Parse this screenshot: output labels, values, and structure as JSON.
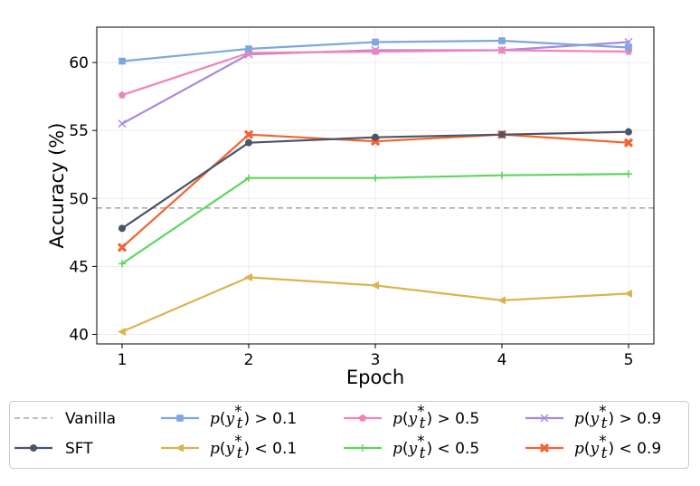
{
  "chart_data": {
    "type": "line",
    "title": "",
    "xlabel": "Epoch",
    "ylabel": "Accuracy (%)",
    "x": [
      1,
      2,
      3,
      4,
      5
    ],
    "xticks": [
      "1",
      "2",
      "3",
      "4",
      "5"
    ],
    "yticks": [
      "40",
      "45",
      "50",
      "55",
      "60"
    ],
    "xlim": [
      0.8,
      5.2
    ],
    "ylim": [
      39.3,
      62.6
    ],
    "grid": true,
    "legend_position": "bottom",
    "baseline": {
      "name": "Vanilla",
      "value": 49.3,
      "color": "#aaaaaa",
      "style": "dashed"
    },
    "series": [
      {
        "name": "SFT",
        "color": "#4a5568",
        "marker": "circle",
        "values": [
          47.8,
          54.1,
          54.5,
          54.7,
          54.9
        ]
      },
      {
        "name": "p(y*t) < 0.1",
        "rel": "<",
        "thr": "0.1",
        "color": "#d9b450",
        "marker": "triangle-left",
        "values": [
          40.2,
          44.2,
          43.6,
          42.5,
          43.0
        ]
      },
      {
        "name": "p(y*t) > 0.1",
        "rel": ">",
        "thr": "0.1",
        "color": "#7ea6e0",
        "marker": "square",
        "values": [
          60.1,
          61.0,
          61.5,
          61.6,
          61.1
        ]
      },
      {
        "name": "p(y*t) < 0.5",
        "rel": "<",
        "thr": "0.5",
        "color": "#5cd65c",
        "marker": "plus",
        "values": [
          45.2,
          51.5,
          51.5,
          51.7,
          51.8
        ]
      },
      {
        "name": "p(y*t) > 0.5",
        "rel": ">",
        "thr": "0.5",
        "color": "#f283b8",
        "marker": "pentagon",
        "values": [
          57.6,
          60.7,
          60.8,
          60.9,
          60.8
        ]
      },
      {
        "name": "p(y*t) < 0.9",
        "rel": "<",
        "thr": "0.9",
        "color": "#f26430",
        "marker": "x-filled",
        "values": [
          46.4,
          54.7,
          54.2,
          54.7,
          54.1
        ]
      },
      {
        "name": "p(y*t) > 0.9",
        "rel": ">",
        "thr": "0.9",
        "color": "#a888e0",
        "marker": "x",
        "values": [
          55.5,
          60.6,
          60.9,
          60.9,
          61.5
        ]
      }
    ]
  }
}
